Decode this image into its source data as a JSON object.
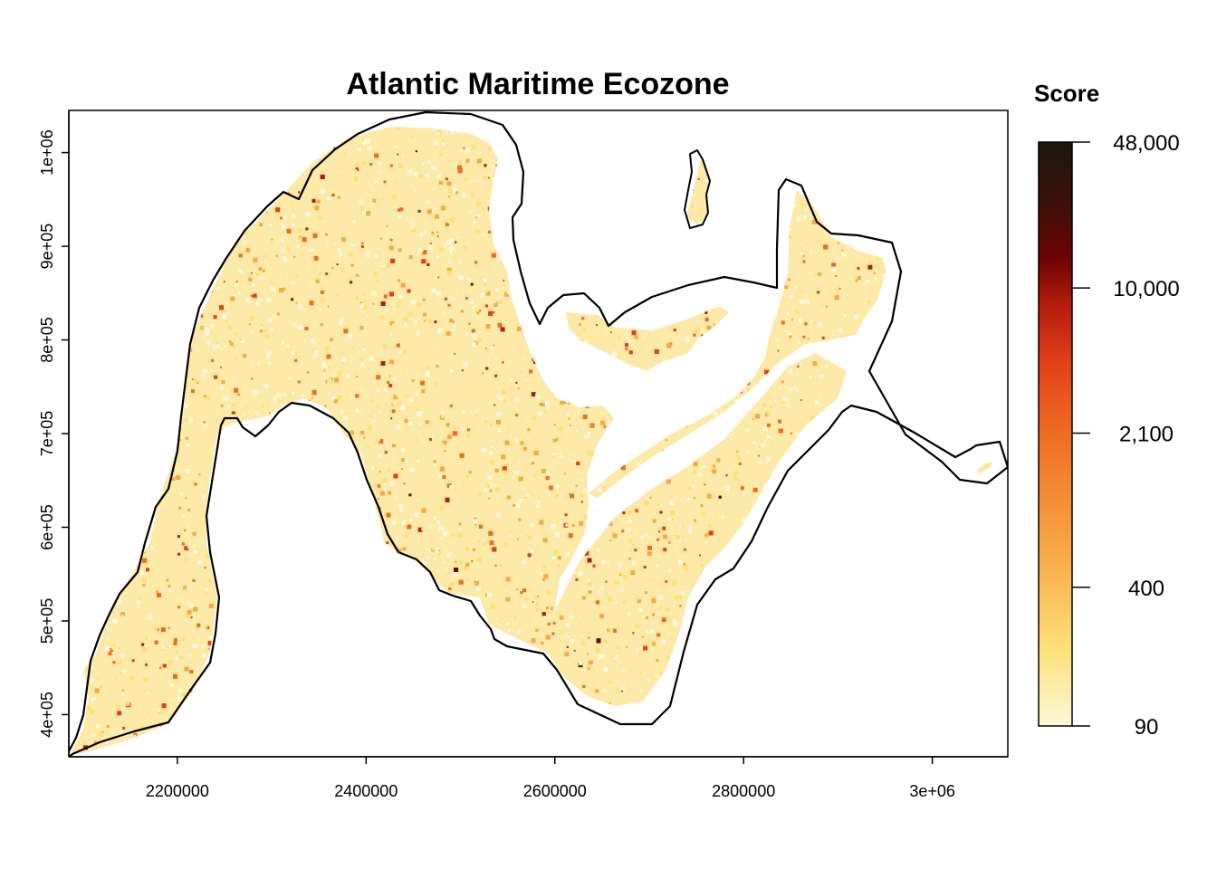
{
  "title": "Atlantic Maritime Ecozone",
  "legend": {
    "title": "Score",
    "ticks": [
      {
        "label": "48,000",
        "value": 48000
      },
      {
        "label": "10,000",
        "value": 10000
      },
      {
        "label": "2,100",
        "value": 2100
      },
      {
        "label": "400",
        "value": 400
      },
      {
        "label": "90",
        "value": 90
      }
    ],
    "scale": "log",
    "range": [
      90,
      48000
    ],
    "colors": [
      "#fff8d8",
      "#fde07a",
      "#f9a846",
      "#ee6d23",
      "#e2401a",
      "#b31d0c",
      "#6e0303",
      "#3a1208",
      "#1c160c"
    ]
  },
  "axes": {
    "x": {
      "range": [
        2085000,
        3080000
      ],
      "ticks": [
        {
          "label": "2200000",
          "value": 2200000
        },
        {
          "label": "2400000",
          "value": 2400000
        },
        {
          "label": "2600000",
          "value": 2600000
        },
        {
          "label": "2800000",
          "value": 2800000
        },
        {
          "label": "3e+06",
          "value": 3000000
        }
      ]
    },
    "y": {
      "range": [
        355000,
        1045000
      ],
      "ticks": [
        {
          "label": "4e+05",
          "value": 400000
        },
        {
          "label": "5e+05",
          "value": 500000
        },
        {
          "label": "6e+05",
          "value": 600000
        },
        {
          "label": "7e+05",
          "value": 700000
        },
        {
          "label": "8e+05",
          "value": 800000
        },
        {
          "label": "9e+05",
          "value": 900000
        },
        {
          "label": "1e+06",
          "value": 1000000
        }
      ]
    }
  },
  "map": {
    "boundary_color": "#000000",
    "region": "Atlantic Maritime Ecozone"
  }
}
